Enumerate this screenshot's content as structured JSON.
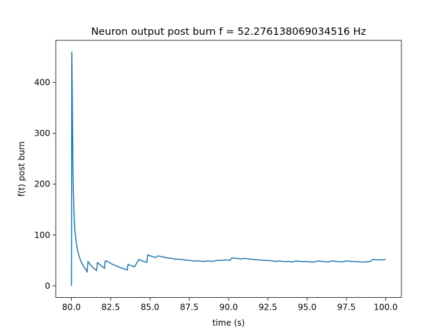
{
  "chart_data": {
    "type": "line",
    "title": "Neuron output post burn f = 52.276138069034516 Hz",
    "xlabel": "time (s)",
    "ylabel": "f(t) post burn",
    "xlim": [
      79.0,
      101.0
    ],
    "ylim": [
      -23.0,
      483.0
    ],
    "grid": false,
    "legend": "none",
    "line_color": "#1f77b4",
    "xticks": [
      80.0,
      82.5,
      85.0,
      87.5,
      90.0,
      92.5,
      95.0,
      97.5,
      100.0
    ],
    "xtick_labels": [
      "80.0",
      "82.5",
      "85.0",
      "87.5",
      "90.0",
      "92.5",
      "95.0",
      "97.5",
      "100.0"
    ],
    "yticks": [
      0,
      100,
      200,
      300,
      400
    ],
    "ytick_labels": [
      "0",
      "100",
      "200",
      "300",
      "400"
    ],
    "series": [
      {
        "x": [
          80.0,
          80.02,
          80.03,
          80.05,
          80.07,
          80.1,
          80.15,
          80.2,
          80.3,
          80.4,
          80.5,
          80.6,
          80.7,
          80.8,
          80.9,
          81.0,
          81.05,
          81.2,
          81.4,
          81.6,
          81.65,
          81.8,
          82.0,
          82.1,
          82.15,
          82.3,
          82.5,
          82.8,
          83.1,
          83.4,
          83.55,
          83.6,
          83.9,
          84.0,
          84.3,
          84.5,
          84.8,
          84.85,
          85.2,
          85.35,
          85.5,
          85.8,
          86.1,
          86.4,
          86.7,
          86.75,
          86.9,
          87.2,
          87.5,
          87.8,
          88.1,
          88.4,
          88.7,
          89.0,
          89.2,
          89.5,
          89.8,
          90.1,
          90.2,
          90.5,
          90.8,
          91.0,
          91.3,
          91.6,
          91.9,
          92.2,
          92.5,
          92.8,
          93.1,
          93.2,
          93.5,
          93.8,
          94.1,
          94.3,
          94.6,
          94.9,
          95.2,
          95.5,
          95.7,
          96.0,
          96.3,
          96.6,
          96.9,
          97.2,
          97.5,
          97.8,
          98.1,
          98.4,
          98.7,
          99.0,
          99.2,
          99.5,
          99.8,
          100.0
        ],
        "y": [
          0,
          460,
          440,
          380,
          300,
          220,
          150,
          115,
          85,
          68,
          57,
          48,
          42,
          37,
          33,
          27,
          48,
          42,
          35,
          30,
          46,
          42,
          37,
          34,
          49,
          48,
          44,
          40,
          36,
          33,
          31,
          42,
          39,
          37,
          52,
          49,
          46,
          61,
          57,
          56,
          59,
          57,
          55,
          54,
          52,
          53,
          52,
          51,
          50,
          49,
          49,
          48,
          49,
          48,
          50,
          50,
          51,
          50,
          55,
          54,
          53,
          54,
          53,
          52,
          51,
          50,
          50,
          49,
          48,
          49,
          48,
          48,
          47,
          49,
          48,
          48,
          47,
          47,
          49,
          48,
          47,
          49,
          48,
          47,
          49,
          48,
          48,
          47,
          47,
          48,
          52,
          51,
          51,
          52
        ]
      }
    ]
  }
}
